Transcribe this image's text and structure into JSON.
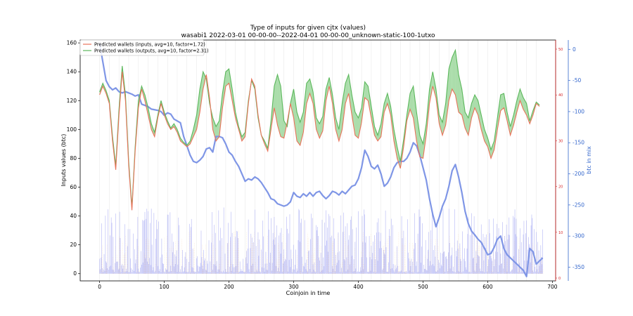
{
  "chart_data": {
    "type": "line",
    "title": "Type of inputs for given cjtx (values)",
    "subtitle": "wasabi1 2022-03-01 00-00-00--2022-04-01 00-00-00_unknown-static-100-1utxo",
    "xlabel": "Coinjoin in time",
    "ylabel": "Inputs values (btc)",
    "y2label": "btc in mix",
    "xlim": [
      -30,
      705
    ],
    "ylim": [
      -5,
      162
    ],
    "y2lim": [
      -372,
      15
    ],
    "x_ticks": [
      0,
      100,
      200,
      300,
      400,
      500,
      600,
      700
    ],
    "y_ticks": [
      0,
      20,
      40,
      60,
      80,
      100,
      120,
      140,
      160
    ],
    "y2_ticks": [
      0,
      -50,
      -100,
      -150,
      -200,
      -250,
      -300,
      -350
    ],
    "y3_ticks": [
      "50",
      "40",
      "30",
      "20",
      "10",
      "0"
    ],
    "legend_position": "top-left",
    "colors": {
      "inputs_line": "#e8735a",
      "outputs_line": "#5cb85c",
      "gain_fill": "#8fd18f",
      "loss_fill": "#f08080",
      "mix_line": "#7f96e6",
      "bars_blue": "#8a8ff0",
      "bars_orange": "#f5b871",
      "axis_right_blue": "#3366cc",
      "axis_right_red": "#d62728"
    },
    "series": [
      {
        "name": "Predicted wallets (inputs, avg=10, factor=1.72)",
        "x": [
          0,
          5,
          10,
          15,
          20,
          25,
          30,
          35,
          40,
          45,
          50,
          55,
          60,
          65,
          70,
          75,
          80,
          85,
          90,
          95,
          100,
          105,
          110,
          115,
          120,
          125,
          130,
          135,
          140,
          145,
          150,
          155,
          160,
          165,
          170,
          175,
          180,
          185,
          190,
          195,
          200,
          205,
          210,
          215,
          220,
          225,
          230,
          235,
          240,
          245,
          250,
          255,
          260,
          265,
          270,
          275,
          280,
          285,
          290,
          295,
          300,
          305,
          310,
          315,
          320,
          325,
          330,
          335,
          340,
          345,
          350,
          355,
          360,
          365,
          370,
          375,
          380,
          385,
          390,
          395,
          400,
          405,
          410,
          415,
          420,
          425,
          430,
          435,
          440,
          445,
          450,
          455,
          460,
          465,
          470,
          475,
          480,
          485,
          490,
          495,
          500,
          505,
          510,
          515,
          520,
          525,
          530,
          535,
          540,
          545,
          550,
          555,
          560,
          565,
          570,
          575,
          580,
          585,
          590,
          595,
          600,
          605,
          610,
          615,
          620,
          625,
          630,
          635,
          640,
          645,
          650,
          655,
          660,
          665,
          670,
          675,
          680
        ],
        "values": [
          124,
          130,
          125,
          118,
          92,
          72,
          110,
          140,
          120,
          75,
          44,
          85,
          115,
          128,
          120,
          110,
          100,
          95,
          108,
          118,
          110,
          104,
          100,
          102,
          98,
          92,
          90,
          88,
          90,
          95,
          100,
          112,
          128,
          138,
          122,
          100,
          92,
          95,
          115,
          130,
          132,
          120,
          108,
          100,
          92,
          95,
          118,
          135,
          130,
          110,
          96,
          90,
          85,
          100,
          115,
          103,
          95,
          94,
          105,
          118,
          108,
          92,
          89,
          98,
          118,
          125,
          118,
          100,
          94,
          99,
          120,
          130,
          118,
          100,
          92,
          100,
          118,
          125,
          110,
          96,
          94,
          105,
          122,
          120,
          108,
          96,
          92,
          95,
          112,
          118,
          110,
          92,
          80,
          73,
          88,
          106,
          114,
          108,
          92,
          81,
          80,
          96,
          118,
          130,
          122,
          104,
          96,
          103,
          120,
          128,
          124,
          112,
          110,
          101,
          96,
          108,
          115,
          110,
          100,
          92,
          88,
          80,
          86,
          100,
          113,
          115,
          106,
          96,
          103,
          112,
          120,
          114,
          110,
          104,
          110,
          118,
          116
        ]
      },
      {
        "name": "Predicted wallets (outputs, avg=10, factor=2.31)",
        "x": [
          0,
          5,
          10,
          15,
          20,
          25,
          30,
          35,
          40,
          45,
          50,
          55,
          60,
          65,
          70,
          75,
          80,
          85,
          90,
          95,
          100,
          105,
          110,
          115,
          120,
          125,
          130,
          135,
          140,
          145,
          150,
          155,
          160,
          165,
          170,
          175,
          180,
          185,
          190,
          195,
          200,
          205,
          210,
          215,
          220,
          225,
          230,
          235,
          240,
          245,
          250,
          255,
          260,
          265,
          270,
          275,
          280,
          285,
          290,
          295,
          300,
          305,
          310,
          315,
          320,
          325,
          330,
          335,
          340,
          345,
          350,
          355,
          360,
          365,
          370,
          375,
          380,
          385,
          390,
          395,
          400,
          405,
          410,
          415,
          420,
          425,
          430,
          435,
          440,
          445,
          450,
          455,
          460,
          465,
          470,
          475,
          480,
          485,
          490,
          495,
          500,
          505,
          510,
          515,
          520,
          525,
          530,
          535,
          540,
          545,
          550,
          555,
          560,
          565,
          570,
          575,
          580,
          585,
          590,
          595,
          600,
          605,
          610,
          615,
          620,
          625,
          630,
          635,
          640,
          645,
          650,
          655,
          660,
          665,
          670,
          675,
          680
        ],
        "values": [
          126,
          132,
          127,
          120,
          95,
          75,
          114,
          144,
          124,
          78,
          46,
          88,
          120,
          130,
          124,
          115,
          104,
          98,
          110,
          120,
          112,
          106,
          101,
          104,
          100,
          94,
          91,
          89,
          92,
          100,
          110,
          128,
          140,
          135,
          118,
          108,
          102,
          106,
          125,
          140,
          142,
          128,
          112,
          102,
          95,
          98,
          120,
          134,
          128,
          108,
          96,
          92,
          87,
          106,
          130,
          138,
          130,
          106,
          102,
          118,
          128,
          112,
          105,
          112,
          132,
          135,
          126,
          108,
          104,
          109,
          128,
          136,
          124,
          108,
          100,
          118,
          132,
          138,
          124,
          112,
          108,
          115,
          133,
          130,
          116,
          102,
          96,
          104,
          118,
          125,
          116,
          100,
          88,
          78,
          93,
          110,
          125,
          130,
          112,
          96,
          90,
          104,
          128,
          140,
          128,
          110,
          105,
          118,
          142,
          150,
          155,
          138,
          128,
          112,
          108,
          118,
          124,
          120,
          110,
          100,
          94,
          86,
          92,
          108,
          124,
          125,
          112,
          102,
          110,
          120,
          128,
          122,
          118,
          106,
          113,
          119,
          117
        ]
      },
      {
        "name": "btc in mix",
        "axis": "right",
        "x": [
          0,
          5,
          10,
          15,
          20,
          25,
          30,
          35,
          40,
          45,
          50,
          55,
          60,
          65,
          70,
          75,
          80,
          85,
          90,
          95,
          100,
          105,
          110,
          115,
          120,
          125,
          130,
          135,
          140,
          145,
          150,
          155,
          160,
          165,
          170,
          175,
          180,
          185,
          190,
          195,
          200,
          205,
          210,
          215,
          220,
          225,
          230,
          235,
          240,
          245,
          250,
          255,
          260,
          265,
          270,
          275,
          280,
          285,
          290,
          295,
          300,
          305,
          310,
          315,
          320,
          325,
          330,
          335,
          340,
          345,
          350,
          355,
          360,
          365,
          370,
          375,
          380,
          385,
          390,
          395,
          400,
          405,
          410,
          415,
          420,
          425,
          430,
          435,
          440,
          445,
          450,
          455,
          460,
          465,
          470,
          475,
          480,
          485,
          490,
          495,
          500,
          505,
          510,
          515,
          520,
          525,
          530,
          535,
          540,
          545,
          550,
          555,
          560,
          565,
          570,
          575,
          580,
          585,
          590,
          595,
          600,
          605,
          610,
          615,
          620,
          625,
          630,
          635,
          640,
          645,
          650,
          655,
          660,
          665,
          670,
          675,
          680,
          685
        ],
        "values": [
          10,
          -20,
          -50,
          -60,
          -65,
          -62,
          -68,
          -70,
          -68,
          -70,
          -72,
          -75,
          -73,
          -88,
          -90,
          -92,
          -96,
          -97,
          -98,
          -100,
          -106,
          -102,
          -104,
          -112,
          -115,
          -118,
          -140,
          -155,
          -170,
          -180,
          -182,
          -178,
          -172,
          -160,
          -158,
          -165,
          -140,
          -140,
          -142,
          -152,
          -165,
          -170,
          -180,
          -188,
          -200,
          -212,
          -208,
          -210,
          -205,
          -208,
          -214,
          -222,
          -230,
          -240,
          -242,
          -248,
          -250,
          -252,
          -250,
          -245,
          -230,
          -236,
          -238,
          -232,
          -236,
          -230,
          -236,
          -230,
          -228,
          -235,
          -240,
          -235,
          -228,
          -230,
          -234,
          -228,
          -232,
          -226,
          -220,
          -218,
          -208,
          -190,
          -162,
          -172,
          -188,
          -192,
          -186,
          -200,
          -220,
          -215,
          -205,
          -190,
          -182,
          -180,
          -180,
          -175,
          -165,
          -150,
          -155,
          -170,
          -190,
          -210,
          -240,
          -265,
          -285,
          -270,
          -252,
          -240,
          -220,
          -195,
          -185,
          -205,
          -230,
          -260,
          -280,
          -292,
          -298,
          -305,
          -310,
          -320,
          -330,
          -328,
          -318,
          -305,
          -300,
          -320,
          -330,
          -335,
          -340,
          -345,
          -350,
          -355,
          -365,
          -320,
          -325,
          -345,
          -340,
          -335
        ]
      }
    ],
    "bars": {
      "type": "bar",
      "note_levels": "density bars near baseline",
      "blue_max": 45,
      "orange_max": 30
    }
  }
}
